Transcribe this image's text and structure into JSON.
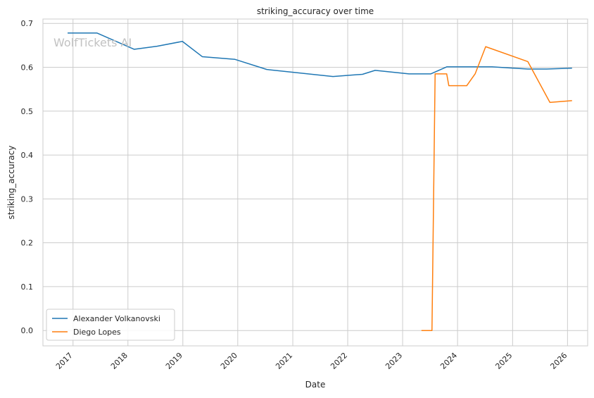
{
  "chart_data": {
    "type": "line",
    "title": "striking_accuracy over time",
    "xlabel": "Date",
    "ylabel": "striking_accuracy",
    "watermark": "WolfTickets AI",
    "x_range": [
      "2016-06-15",
      "2026-05-15"
    ],
    "ylim": [
      -0.035,
      0.71
    ],
    "x_ticks": [
      "2017",
      "2018",
      "2019",
      "2020",
      "2021",
      "2022",
      "2023",
      "2024",
      "2025",
      "2026"
    ],
    "y_ticks": [
      "0.0",
      "0.1",
      "0.2",
      "0.3",
      "0.4",
      "0.5",
      "0.6",
      "0.7"
    ],
    "grid": true,
    "legend_position": "lower-left",
    "series": [
      {
        "name": "Alexander Volkanovski",
        "color": "#1f77b4",
        "points": [
          [
            "2016-11-26",
            0.678
          ],
          [
            "2017-06-10",
            0.678
          ],
          [
            "2018-02-11",
            0.641
          ],
          [
            "2018-07-14",
            0.648
          ],
          [
            "2018-12-29",
            0.659
          ],
          [
            "2019-05-11",
            0.624
          ],
          [
            "2019-12-14",
            0.618
          ],
          [
            "2020-07-12",
            0.595
          ],
          [
            "2021-09-25",
            0.579
          ],
          [
            "2022-04-09",
            0.584
          ],
          [
            "2022-07-02",
            0.593
          ],
          [
            "2023-02-12",
            0.585
          ],
          [
            "2023-07-08",
            0.585
          ],
          [
            "2023-10-21",
            0.601
          ],
          [
            "2024-02-17",
            0.601
          ],
          [
            "2024-08-17",
            0.601
          ],
          [
            "2025-04-12",
            0.596
          ],
          [
            "2025-08-16",
            0.596
          ],
          [
            "2026-01-31",
            0.598
          ]
        ]
      },
      {
        "name": "Diego Lopes",
        "color": "#ff7f0e",
        "points": [
          [
            "2023-05-06",
            0.0
          ],
          [
            "2023-07-15",
            0.0
          ],
          [
            "2023-08-05",
            0.585
          ],
          [
            "2023-10-21",
            0.585
          ],
          [
            "2023-11-04",
            0.558
          ],
          [
            "2024-03-02",
            0.558
          ],
          [
            "2024-04-27",
            0.585
          ],
          [
            "2024-07-06",
            0.647
          ],
          [
            "2025-04-12",
            0.613
          ],
          [
            "2025-09-06",
            0.52
          ],
          [
            "2026-01-31",
            0.524
          ]
        ]
      }
    ]
  }
}
